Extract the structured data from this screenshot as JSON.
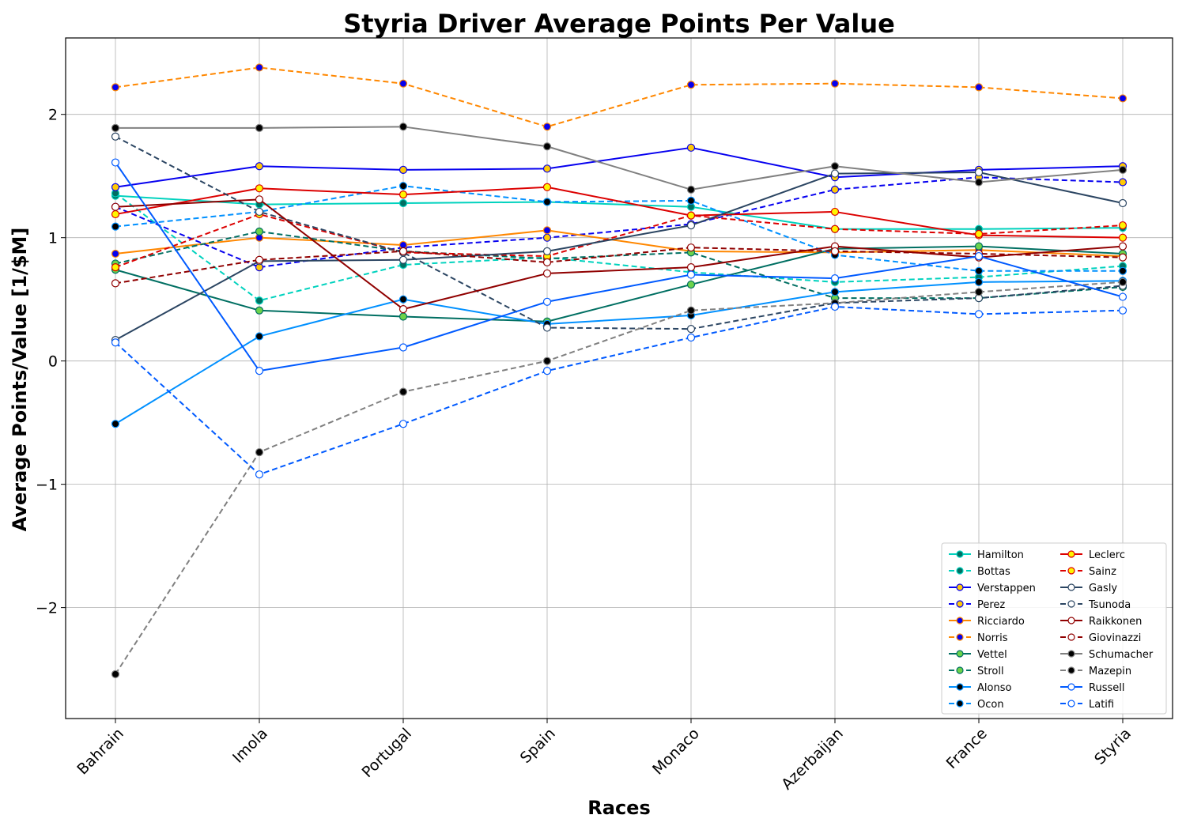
{
  "chart_data": {
    "type": "line",
    "title": "Styria Driver Average Points Per Value",
    "xlabel": "Races",
    "ylabel": "Average Points/Value [1/$M]",
    "categories": [
      "Bahrain",
      "Imola",
      "Portugal",
      "Spain",
      "Monaco",
      "Azerbaijan",
      "France",
      "Styria"
    ],
    "ylim": [
      -2.9,
      2.62
    ],
    "yticks": [
      -2,
      -1,
      0,
      1,
      2
    ],
    "ytick_labels": [
      "−2",
      "−1",
      "0",
      "1",
      "2"
    ],
    "grid": true,
    "legend": {
      "placement": "lower-right",
      "columns": 2
    },
    "series": [
      {
        "name": "Hamilton",
        "color": "#00d2be",
        "marker_face": "#006f62",
        "dash": "solid",
        "values": [
          1.34,
          1.27,
          1.28,
          1.29,
          1.25,
          1.07,
          1.07,
          1.08
        ]
      },
      {
        "name": "Bottas",
        "color": "#00d2be",
        "marker_face": "#006f62",
        "dash": "dashed",
        "values": [
          1.36,
          0.49,
          0.78,
          0.84,
          0.72,
          0.64,
          0.68,
          0.77
        ]
      },
      {
        "name": "Verstappen",
        "color": "#0600ef",
        "marker_face": "#ffc906",
        "dash": "solid",
        "values": [
          1.41,
          1.58,
          1.55,
          1.56,
          1.73,
          1.49,
          1.55,
          1.58
        ]
      },
      {
        "name": "Perez",
        "color": "#0600ef",
        "marker_face": "#ffc906",
        "dash": "dashed",
        "values": [
          1.25,
          0.76,
          0.92,
          1.0,
          1.11,
          1.39,
          1.49,
          1.45
        ]
      },
      {
        "name": "Ricciardo",
        "color": "#ff8700",
        "marker_face": "#0600ef",
        "dash": "solid",
        "values": [
          0.87,
          1.0,
          0.94,
          1.06,
          0.89,
          0.88,
          0.9,
          0.85
        ]
      },
      {
        "name": "Norris",
        "color": "#ff8700",
        "marker_face": "#0600ef",
        "dash": "dashed",
        "values": [
          2.22,
          2.38,
          2.25,
          1.9,
          2.24,
          2.25,
          2.22,
          2.13
        ]
      },
      {
        "name": "Vettel",
        "color": "#006f62",
        "marker_face": "#6cd34b",
        "dash": "solid",
        "values": [
          0.74,
          0.41,
          0.36,
          0.32,
          0.62,
          0.91,
          0.93,
          0.87
        ]
      },
      {
        "name": "Stroll",
        "color": "#006f62",
        "marker_face": "#6cd34b",
        "dash": "dashed",
        "values": [
          0.79,
          1.05,
          0.89,
          0.83,
          0.88,
          0.51,
          0.51,
          0.6
        ]
      },
      {
        "name": "Alonso",
        "color": "#0090ff",
        "marker_face": "#000000",
        "dash": "solid",
        "values": [
          -0.51,
          0.2,
          0.5,
          0.3,
          0.37,
          0.56,
          0.64,
          0.65
        ]
      },
      {
        "name": "Ocon",
        "color": "#0090ff",
        "marker_face": "#000000",
        "dash": "dashed",
        "values": [
          1.09,
          1.21,
          1.42,
          1.29,
          1.3,
          0.86,
          0.73,
          0.73
        ]
      },
      {
        "name": "Leclerc",
        "color": "#dc0000",
        "marker_face": "#fff500",
        "dash": "solid",
        "values": [
          1.19,
          1.4,
          1.35,
          1.41,
          1.18,
          1.21,
          1.02,
          1.0
        ]
      },
      {
        "name": "Sainz",
        "color": "#dc0000",
        "marker_face": "#fff500",
        "dash": "dashed",
        "values": [
          0.76,
          1.19,
          0.88,
          0.85,
          1.18,
          1.07,
          1.03,
          1.1
        ]
      },
      {
        "name": "Gasly",
        "color": "#2b4562",
        "marker_face": "#ffffff",
        "dash": "solid",
        "values": [
          0.17,
          0.81,
          0.82,
          0.89,
          1.1,
          1.52,
          1.53,
          1.28
        ]
      },
      {
        "name": "Tsunoda",
        "color": "#2b4562",
        "marker_face": "#ffffff",
        "dash": "dashed",
        "values": [
          1.82,
          1.21,
          0.88,
          0.27,
          0.26,
          0.47,
          0.51,
          0.61
        ]
      },
      {
        "name": "Raikkonen",
        "color": "#900000",
        "marker_face": "#ffffff",
        "dash": "solid",
        "values": [
          1.25,
          1.31,
          0.42,
          0.71,
          0.76,
          0.93,
          0.84,
          0.93
        ]
      },
      {
        "name": "Giovinazzi",
        "color": "#900000",
        "marker_face": "#ffffff",
        "dash": "dashed",
        "values": [
          0.63,
          0.82,
          0.89,
          0.8,
          0.92,
          0.89,
          0.87,
          0.84
        ]
      },
      {
        "name": "Schumacher",
        "color": "#808080",
        "marker_face": "#000000",
        "dash": "solid",
        "values": [
          1.89,
          1.89,
          1.9,
          1.74,
          1.39,
          1.58,
          1.45,
          1.55
        ]
      },
      {
        "name": "Mazepin",
        "color": "#808080",
        "marker_face": "#000000",
        "dash": "dashed",
        "values": [
          -2.54,
          -0.74,
          -0.25,
          0.0,
          0.41,
          0.47,
          0.56,
          0.64
        ]
      },
      {
        "name": "Russell",
        "color": "#005aff",
        "marker_face": "#ffffff",
        "dash": "solid",
        "values": [
          1.61,
          -0.08,
          0.11,
          0.48,
          0.7,
          0.67,
          0.85,
          0.52
        ]
      },
      {
        "name": "Latifi",
        "color": "#005aff",
        "marker_face": "#ffffff",
        "dash": "dashed",
        "values": [
          0.15,
          -0.92,
          -0.51,
          -0.08,
          0.19,
          0.44,
          0.38,
          0.41
        ]
      }
    ]
  }
}
